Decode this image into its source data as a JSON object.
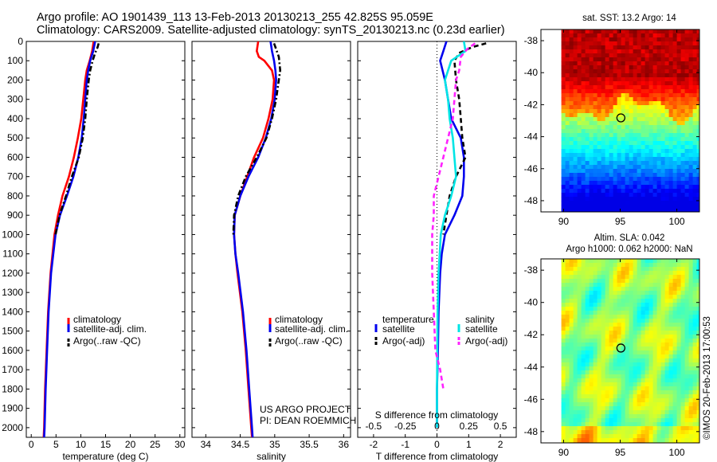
{
  "header": {
    "line1": "Argo profile: AO 1901439_113 13-Feb-2013 20130213_255 42.825S 95.059E",
    "line2": "Climatology: CARS2009. Satellite-adjusted climatology: synTS_20130213.nc (0.23d earlier)"
  },
  "depth_ticks": [
    "0",
    "100",
    "200",
    "300",
    "400",
    "500",
    "600",
    "700",
    "800",
    "900",
    "1000",
    "1100",
    "1200",
    "1300",
    "1400",
    "1500",
    "1600",
    "1700",
    "1800",
    "1900",
    "2000"
  ],
  "colors": {
    "climatology": "#ff0000",
    "satellite": "#0000ee",
    "argo": "#000000",
    "sal_satellite": "#00e5e5",
    "sal_argo": "#ff22ff"
  },
  "legend_labels": {
    "climatology": "climatology",
    "satellite_adj": "satellite-adj. clim.",
    "argo_raw": "Argo(..raw -QC)"
  },
  "credit": {
    "line1": "US ARGO PROJECT",
    "line2": "PI: DEAN ROEMMICH"
  },
  "diff_legend": {
    "temp_header": "temperature",
    "sal_header": "salinity",
    "satellite": "satellite",
    "argo_adj": "Argo(-adj)"
  },
  "chart_data": [
    {
      "type": "line",
      "name": "temperature-profile",
      "xlabel": "temperature (deg C)",
      "ylabel": "",
      "xlim": [
        -1,
        31
      ],
      "ylim": [
        0,
        2050
      ],
      "xticks": [
        "0",
        "5",
        "10",
        "15",
        "20",
        "25",
        "30"
      ],
      "series": [
        {
          "name": "climatology",
          "style": "solid",
          "depth": [
            0,
            50,
            100,
            150,
            200,
            300,
            400,
            500,
            600,
            700,
            800,
            900,
            1000,
            1200,
            1400,
            1600,
            1800,
            2000,
            2050
          ],
          "values": [
            12.6,
            12.3,
            11.8,
            11.2,
            10.9,
            10.5,
            10.1,
            9.4,
            8.6,
            7.6,
            6.3,
            5.4,
            4.7,
            3.9,
            3.4,
            3.1,
            2.8,
            2.6,
            2.5
          ]
        },
        {
          "name": "satellite-adj. clim.",
          "style": "solid",
          "depth": [
            0,
            50,
            100,
            150,
            200,
            300,
            400,
            500,
            600,
            700,
            800,
            900,
            1000,
            1200,
            1400,
            1600,
            1800,
            2000,
            2050
          ],
          "values": [
            12.9,
            12.5,
            11.9,
            11.5,
            11.2,
            10.9,
            10.6,
            10.2,
            9.5,
            8.5,
            7.2,
            5.8,
            4.9,
            4.0,
            3.5,
            3.2,
            2.9,
            2.7,
            2.6
          ]
        },
        {
          "name": "Argo(..raw -QC)",
          "style": "dashdot",
          "depth": [
            10,
            30,
            60,
            100,
            150,
            200,
            300,
            400,
            500,
            600,
            700,
            800,
            900,
            1000
          ],
          "values": [
            13.6,
            13.4,
            12.9,
            12.4,
            11.9,
            11.6,
            11.2,
            10.9,
            10.4,
            9.6,
            8.2,
            7.0,
            5.7,
            4.9
          ]
        }
      ]
    },
    {
      "type": "line",
      "name": "salinity-profile",
      "xlabel": "salinity",
      "ylabel": "",
      "xlim": [
        33.8,
        36.1
      ],
      "ylim": [
        0,
        2050
      ],
      "xticks": [
        "34",
        "34.5",
        "35",
        "35.5",
        "36"
      ],
      "series": [
        {
          "name": "climatology",
          "style": "solid",
          "depth": [
            0,
            50,
            80,
            100,
            150,
            200,
            300,
            400,
            500,
            600,
            700,
            800,
            900,
            1000,
            1100,
            1200,
            1400,
            1600,
            1800,
            2000,
            2050
          ],
          "values": [
            34.76,
            34.74,
            34.77,
            34.85,
            34.96,
            34.99,
            34.97,
            34.91,
            34.83,
            34.7,
            34.6,
            34.5,
            34.42,
            34.41,
            34.43,
            34.46,
            34.53,
            34.58,
            34.62,
            34.66,
            34.67
          ]
        },
        {
          "name": "satellite-adj. clim.",
          "style": "solid",
          "depth": [
            0,
            50,
            100,
            150,
            200,
            300,
            400,
            500,
            600,
            700,
            800,
            900,
            1000,
            1100,
            1200,
            1400,
            1600,
            1800,
            2000,
            2050
          ],
          "values": [
            34.94,
            34.96,
            34.99,
            35.01,
            35.02,
            35.0,
            34.95,
            34.87,
            34.76,
            34.62,
            34.5,
            34.42,
            34.41,
            34.43,
            34.47,
            34.54,
            34.59,
            34.63,
            34.67,
            34.68
          ]
        },
        {
          "name": "Argo(..raw -QC)",
          "style": "dashdot",
          "depth": [
            10,
            40,
            80,
            150,
            200,
            300,
            400,
            500,
            600,
            700,
            800,
            900,
            1000
          ],
          "values": [
            34.99,
            35.02,
            35.06,
            35.08,
            35.06,
            35.02,
            34.96,
            34.88,
            34.74,
            34.58,
            34.47,
            34.41,
            34.4
          ]
        }
      ]
    },
    {
      "type": "line",
      "name": "difference-profile",
      "xlabel": "T difference from climatology",
      "title_inner": "S difference from climatology",
      "xlim": [
        -2.5,
        2.5
      ],
      "ylim": [
        0,
        2050
      ],
      "xticks": [
        "-2",
        "-1",
        "0",
        "1",
        "2"
      ],
      "sticks": [
        "-0.5",
        "-0.25",
        "0",
        "0.25",
        "0.5"
      ],
      "series": [
        {
          "name": "temperature satellite",
          "style": "solid",
          "depth": [
            0,
            50,
            100,
            200,
            300,
            400,
            500,
            600,
            700,
            800,
            900,
            1000,
            1100,
            1200,
            1400,
            1600,
            1800,
            2000
          ],
          "values": [
            0.3,
            0.2,
            0.1,
            0.25,
            0.35,
            0.45,
            0.75,
            0.85,
            0.85,
            0.8,
            0.55,
            0.25,
            0.15,
            0.1,
            0.05,
            0.03,
            0.0,
            0.0
          ]
        },
        {
          "name": "temperature Argo(-adj)",
          "style": "dashed",
          "depth": [
            10,
            30,
            60,
            100,
            200,
            300,
            400,
            500,
            600,
            700,
            800,
            900,
            1000
          ],
          "values": [
            1.55,
            1.1,
            0.7,
            0.55,
            0.6,
            0.7,
            0.75,
            0.8,
            0.9,
            0.6,
            0.4,
            0.3,
            0.2
          ]
        },
        {
          "name": "salinity satellite",
          "style": "solid",
          "depth": [
            0,
            50,
            100,
            200,
            300,
            400,
            500,
            600,
            700,
            800,
            900,
            1000,
            1200,
            1400,
            1600,
            1800,
            2000
          ],
          "values": [
            0.85,
            0.9,
            0.45,
            0.25,
            0.35,
            0.4,
            0.5,
            0.55,
            0.6,
            0.45,
            0.25,
            0.12,
            0.05,
            0.02,
            0.01,
            0.0,
            0.0
          ]
        },
        {
          "name": "salinity Argo(-adj)",
          "style": "dashed",
          "depth": [
            10,
            40,
            80,
            150,
            200,
            300,
            400,
            500,
            600,
            700,
            800,
            900,
            1000,
            1200,
            1400,
            1600,
            1700,
            1800
          ],
          "values": [
            1.2,
            0.95,
            0.75,
            0.7,
            0.6,
            0.55,
            0.5,
            0.35,
            0.2,
            0.05,
            -0.1,
            -0.1,
            -0.15,
            -0.15,
            -0.1,
            -0.05,
            0.1,
            0.2
          ]
        }
      ]
    },
    {
      "type": "heatmap",
      "name": "sst-map",
      "title": "sat. SST: 13.2  Argo: 14",
      "xticks": [
        "90",
        "95",
        "100"
      ],
      "yticks": [
        "-38",
        "-40",
        "-42",
        "-44",
        "-46",
        "-48"
      ],
      "xlim": [
        88,
        102
      ],
      "ylim": [
        -48.7,
        -37.3
      ],
      "marker": {
        "lon": 95.059,
        "lat": -42.825
      }
    },
    {
      "type": "heatmap",
      "name": "sla-map",
      "title": "Altim. SLA: 0.042",
      "subtitle": "Argo h1000: 0.062  h2000: NaN",
      "xticks": [
        "90",
        "95",
        "100"
      ],
      "yticks": [
        "-38",
        "-40",
        "-42",
        "-44",
        "-46",
        "-48"
      ],
      "xlim": [
        88,
        102
      ],
      "ylim": [
        -48.7,
        -37.3
      ],
      "marker": {
        "lon": 95.059,
        "lat": -42.825
      }
    }
  ],
  "side_stamp": "©IMOS 20-Feb-2013 17:00:53"
}
